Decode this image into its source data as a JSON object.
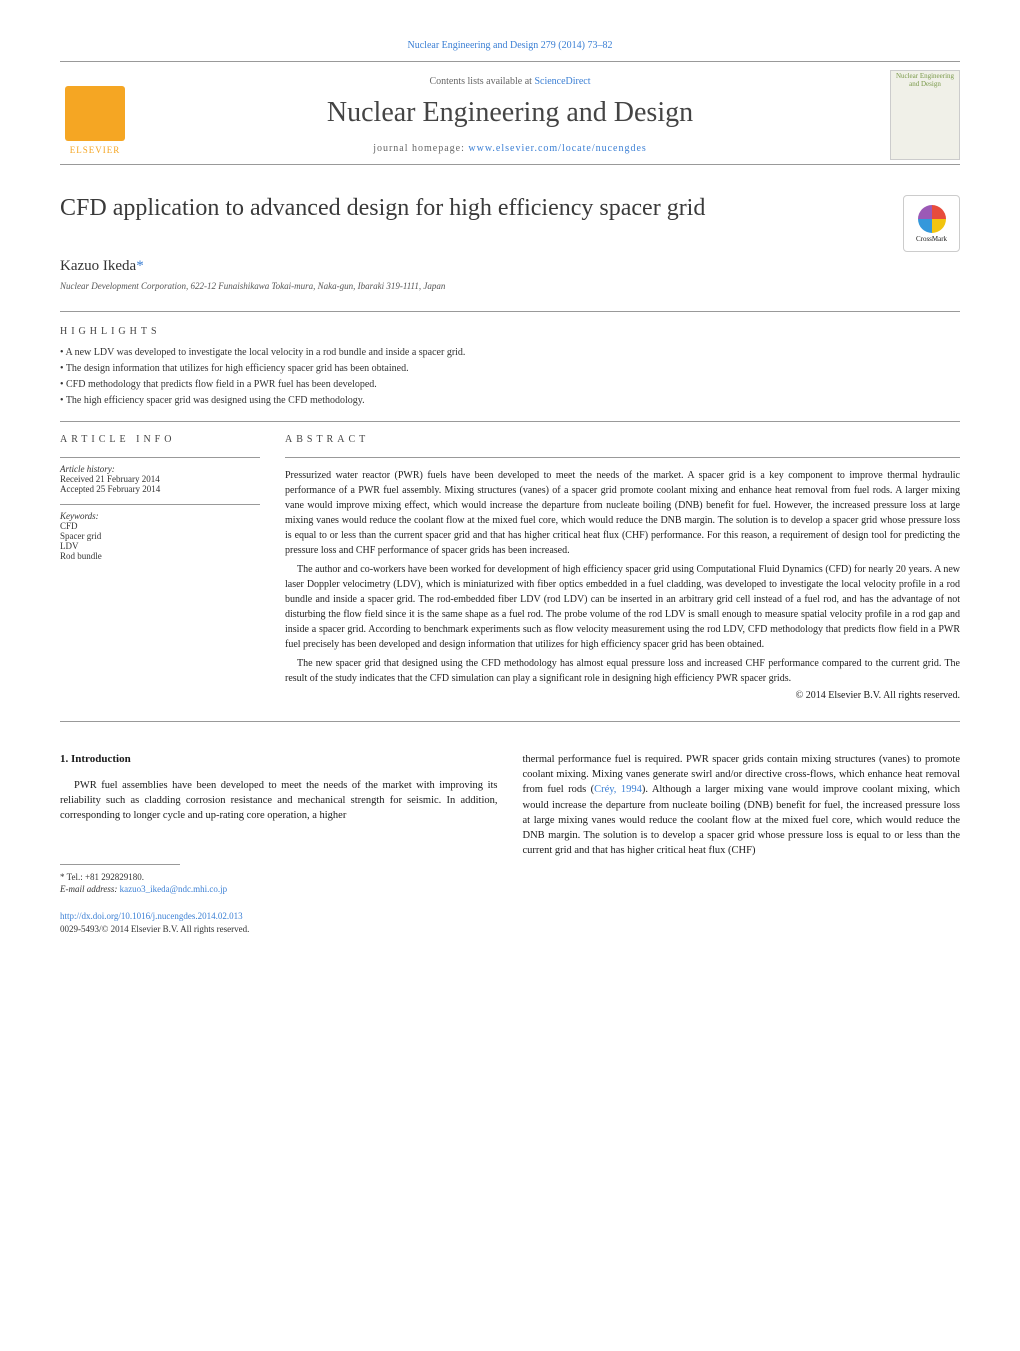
{
  "header": {
    "citation": "Nuclear Engineering and Design 279 (2014) 73–82",
    "contents_prefix": "Contents lists available at ",
    "contents_link": "ScienceDirect",
    "journal_name": "Nuclear Engineering and Design",
    "homepage_prefix": "journal homepage: ",
    "homepage_url": "www.elsevier.com/locate/nucengdes",
    "publisher_label": "ELSEVIER",
    "cover_title": "Nuclear Engineering and Design",
    "crossmark_label": "CrossMark"
  },
  "article": {
    "title": "CFD application to advanced design for high efficiency spacer grid",
    "author": "Kazuo Ikeda",
    "author_marker": "*",
    "affiliation": "Nuclear Development Corporation, 622-12 Funaishikawa Tokai-mura, Naka-gun, Ibaraki 319-1111, Japan"
  },
  "highlights": {
    "heading": "HIGHLIGHTS",
    "items": [
      "A new LDV was developed to investigate the local velocity in a rod bundle and inside a spacer grid.",
      "The design information that utilizes for high efficiency spacer grid has been obtained.",
      "CFD methodology that predicts flow field in a PWR fuel has been developed.",
      "The high efficiency spacer grid was designed using the CFD methodology."
    ]
  },
  "article_info": {
    "heading": "ARTICLE INFO",
    "history_label": "Article history:",
    "received": "Received 21 February 2014",
    "accepted": "Accepted 25 February 2014",
    "keywords_label": "Keywords:",
    "keywords": [
      "CFD",
      "Spacer grid",
      "LDV",
      "Rod bundle"
    ]
  },
  "abstract": {
    "heading": "ABSTRACT",
    "p1": "Pressurized water reactor (PWR) fuels have been developed to meet the needs of the market. A spacer grid is a key component to improve thermal hydraulic performance of a PWR fuel assembly. Mixing structures (vanes) of a spacer grid promote coolant mixing and enhance heat removal from fuel rods. A larger mixing vane would improve mixing effect, which would increase the departure from nucleate boiling (DNB) benefit for fuel. However, the increased pressure loss at large mixing vanes would reduce the coolant flow at the mixed fuel core, which would reduce the DNB margin. The solution is to develop a spacer grid whose pressure loss is equal to or less than the current spacer grid and that has higher critical heat flux (CHF) performance. For this reason, a requirement of design tool for predicting the pressure loss and CHF performance of spacer grids has been increased.",
    "p2": "The author and co-workers have been worked for development of high efficiency spacer grid using Computational Fluid Dynamics (CFD) for nearly 20 years. A new laser Doppler velocimetry (LDV), which is miniaturized with fiber optics embedded in a fuel cladding, was developed to investigate the local velocity profile in a rod bundle and inside a spacer grid. The rod-embedded fiber LDV (rod LDV) can be inserted in an arbitrary grid cell instead of a fuel rod, and has the advantage of not disturbing the flow field since it is the same shape as a fuel rod. The probe volume of the rod LDV is small enough to measure spatial velocity profile in a rod gap and inside a spacer grid. According to benchmark experiments such as flow velocity measurement using the rod LDV, CFD methodology that predicts flow field in a PWR fuel precisely has been developed and design information that utilizes for high efficiency spacer grid has been obtained.",
    "p3": "The new spacer grid that designed using the CFD methodology has almost equal pressure loss and increased CHF performance compared to the current grid. The result of the study indicates that the CFD simulation can play a significant role in designing high efficiency PWR spacer grids.",
    "copyright": "© 2014 Elsevier B.V. All rights reserved."
  },
  "body": {
    "intro_heading": "1.  Introduction",
    "left_p1": "PWR fuel assemblies have been developed to meet the needs of the market with improving its reliability such as cladding corrosion resistance and mechanical strength for seismic. In addition, corresponding to longer cycle and up-rating core operation, a higher",
    "right_p1_a": "thermal performance fuel is required. PWR spacer grids contain mixing structures (vanes) to promote coolant mixing. Mixing vanes generate swirl and/or directive cross-flows, which enhance heat removal from fuel rods (",
    "right_cite": "Créy, 1994",
    "right_p1_b": "). Although a larger mixing vane would improve coolant mixing, which would increase the departure from nucleate boiling (DNB) benefit for fuel, the increased pressure loss at large mixing vanes would reduce the coolant flow at the mixed fuel core, which would reduce the DNB margin. The solution is to develop a spacer grid whose pressure loss is equal to or less than the current grid and that has higher critical heat flux (CHF)"
  },
  "footnote": {
    "tel_label": "* Tel.: +81 292829180.",
    "email_label": "E-mail address: ",
    "email": "kazuo3_ikeda@ndc.mhi.co.jp"
  },
  "footer": {
    "doi": "http://dx.doi.org/10.1016/j.nucengdes.2014.02.013",
    "issn_copyright": "0029-5493/© 2014 Elsevier B.V. All rights reserved."
  },
  "colors": {
    "link": "#3b7fd4",
    "elsevier_orange": "#f5a623",
    "text": "#1a1a1a",
    "muted": "#666666",
    "rule": "#999999"
  }
}
